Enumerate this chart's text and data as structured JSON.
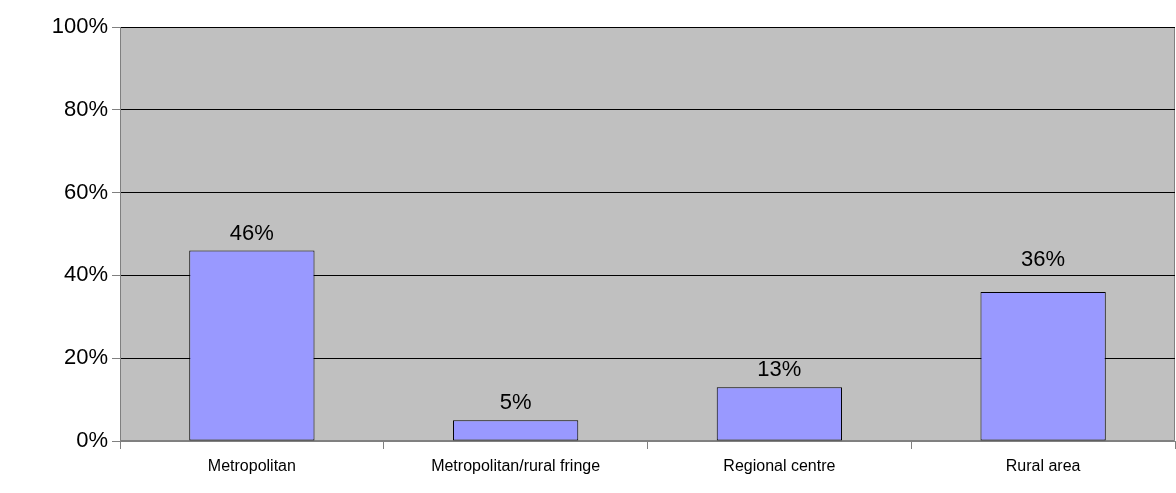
{
  "chart_data": {
    "type": "bar",
    "categories": [
      "Metropolitan",
      "Metropolitan/rural fringe",
      "Regional centre",
      "Rural area"
    ],
    "values": [
      46,
      5,
      13,
      36
    ],
    "color": "#9999ff",
    "value_labels": [
      "46%",
      "5%",
      "13%",
      "36%"
    ],
    "ylim": [
      0,
      100
    ],
    "yticks": [
      {
        "value": 0,
        "label": "0%"
      },
      {
        "value": 20,
        "label": "20%"
      },
      {
        "value": 40,
        "label": "40%"
      },
      {
        "value": 60,
        "label": "60%"
      },
      {
        "value": 80,
        "label": "80%"
      },
      {
        "value": 100,
        "label": "100%"
      }
    ],
    "grid": "y",
    "legend": false
  }
}
